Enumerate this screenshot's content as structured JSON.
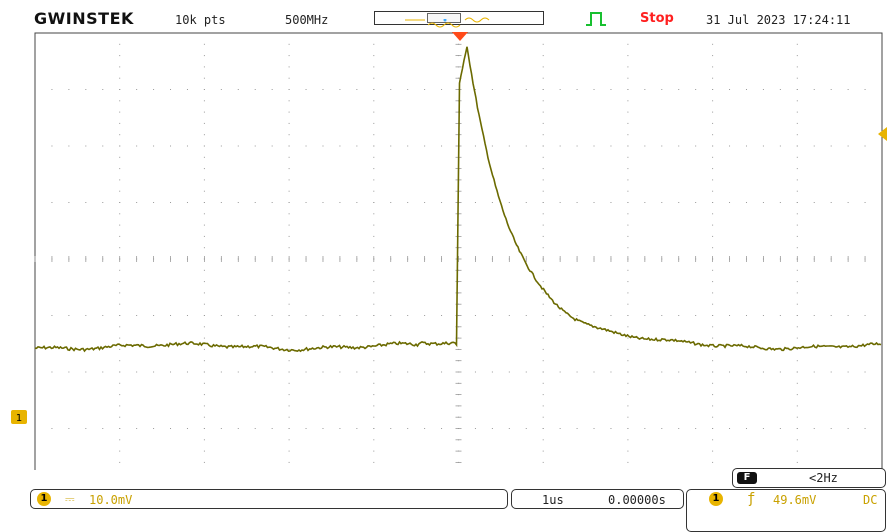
{
  "header": {
    "brand": "GWINSTEK",
    "record_length": "10k pts",
    "sample_rate": "500MHz",
    "status": "Stop",
    "datetime": "31 Jul 2023 17:24:11"
  },
  "channel1": {
    "marker_label": "1",
    "coupling_symbol": "⎓",
    "scale": "10.0mV"
  },
  "timebase": {
    "time_div": "1us",
    "position": "0.00000s"
  },
  "trigger": {
    "source_label": "1",
    "slope_symbol": "ƒ",
    "level": "49.6mV",
    "coupling": "DC"
  },
  "frequency": {
    "badge": "F",
    "value": "<2Hz"
  },
  "colors": {
    "trace": "#6b6a00",
    "ch1": "#e8b400",
    "trigger_marker": "#ff4a1a",
    "status_stop": "#ff2020",
    "trigger_icon": "#18c030",
    "grid_dot": "#9a9a9a",
    "grid_border": "#444444"
  },
  "icons": {
    "trigger_type": "rising-edge-pulse-icon",
    "trigger_position": "down-triangle-marker-icon",
    "trigger_level": "left-arrow-marker-icon",
    "channel_ground": "ch1-ground-marker-icon"
  },
  "waveform": {
    "description_units": "Channel 1, 10.0mV/div, 1us/div",
    "baseline_div": -1.55,
    "peak_div": 3.75,
    "rise_time_div_offset": 0.0,
    "peak_time_div_offset": 0.1
  }
}
